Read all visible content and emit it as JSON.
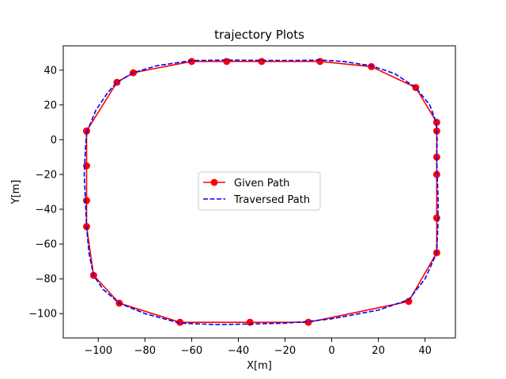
{
  "chart_data": {
    "type": "line",
    "title": "trajectory Plots",
    "xlabel": "X[m]",
    "ylabel": "Y[m]",
    "xlim": [
      -115,
      53
    ],
    "ylim": [
      -114,
      54
    ],
    "xticks": [
      -100,
      -80,
      -60,
      -40,
      -20,
      0,
      20,
      40
    ],
    "yticks": [
      -100,
      -80,
      -60,
      -40,
      -20,
      0,
      20,
      40
    ],
    "tick_labels_x": [
      "−100",
      "−80",
      "−60",
      "−40",
      "−20",
      "0",
      "20",
      "40"
    ],
    "tick_labels_y": [
      "−100",
      "−80",
      "−60",
      "−40",
      "−20",
      "0",
      "20",
      "40"
    ],
    "grid": false,
    "legend_position": "center",
    "series": [
      {
        "name": "Given Path",
        "color": "#ff0000",
        "style": "solid",
        "marker": "circle",
        "points": [
          [
            -105,
            5
          ],
          [
            -92,
            33
          ],
          [
            -85,
            38.5
          ],
          [
            -60,
            45
          ],
          [
            -45,
            45
          ],
          [
            -30,
            45
          ],
          [
            -5,
            45
          ],
          [
            17,
            42
          ],
          [
            36,
            30
          ],
          [
            45,
            10
          ],
          [
            45,
            5
          ],
          [
            45,
            -10
          ],
          [
            45,
            -20
          ],
          [
            45,
            -45
          ],
          [
            45,
            -65
          ],
          [
            33,
            -93
          ],
          [
            -10,
            -105
          ],
          [
            -35,
            -105
          ],
          [
            -65,
            -105
          ],
          [
            -91,
            -94
          ],
          [
            -102,
            -78
          ],
          [
            -105,
            -50
          ],
          [
            -105,
            -35
          ],
          [
            -105,
            -15
          ],
          [
            -105,
            5
          ]
        ]
      },
      {
        "name": "Traversed Path",
        "color": "#0000ff",
        "style": "dashed",
        "marker": "none",
        "points": [
          [
            -105,
            4
          ],
          [
            -101,
            17
          ],
          [
            -96,
            27
          ],
          [
            -92,
            33
          ],
          [
            -85,
            38.5
          ],
          [
            -75,
            42.5
          ],
          [
            -60,
            45.5
          ],
          [
            -45,
            45.8
          ],
          [
            -30,
            45.6
          ],
          [
            -15,
            45.6
          ],
          [
            -5,
            45.8
          ],
          [
            5,
            45
          ],
          [
            17,
            42.5
          ],
          [
            27,
            38
          ],
          [
            36,
            30
          ],
          [
            42,
            20
          ],
          [
            44.8,
            10
          ],
          [
            45.2,
            0
          ],
          [
            45,
            -10
          ],
          [
            45.2,
            -20
          ],
          [
            45.6,
            -35
          ],
          [
            45.5,
            -50
          ],
          [
            45,
            -65
          ],
          [
            40,
            -80
          ],
          [
            33,
            -92
          ],
          [
            20,
            -98
          ],
          [
            0,
            -103
          ],
          [
            -10,
            -104.5
          ],
          [
            -20,
            -105.5
          ],
          [
            -35,
            -106
          ],
          [
            -50,
            -106.3
          ],
          [
            -65,
            -105.5
          ],
          [
            -80,
            -100
          ],
          [
            -91,
            -94
          ],
          [
            -98,
            -86
          ],
          [
            -102,
            -78
          ],
          [
            -104,
            -65
          ],
          [
            -105,
            -50
          ],
          [
            -105.5,
            -35
          ],
          [
            -106,
            -20
          ],
          [
            -105.5,
            -5
          ],
          [
            -105,
            4
          ]
        ]
      }
    ]
  }
}
